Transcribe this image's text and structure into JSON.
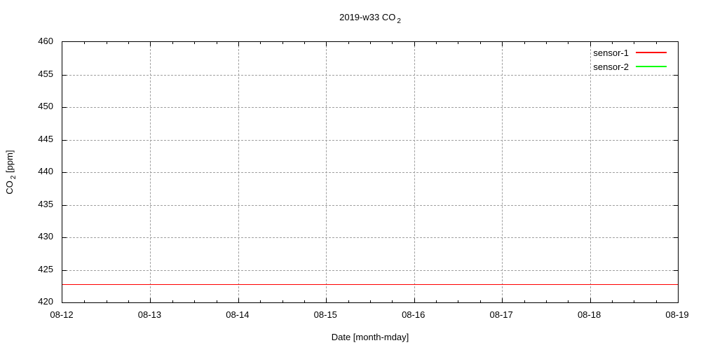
{
  "colors": {
    "background": "#ffffff",
    "axis": "#000000",
    "grid": "#a0a0a0",
    "text": "#000000"
  },
  "chart_data": {
    "type": "line",
    "title": {
      "main": "2019-w33 CO",
      "sub": "2"
    },
    "xlabel": "Date [month-mday]",
    "ylabel": {
      "main": "CO",
      "sub": "2",
      "post": " [ppm]"
    },
    "x_tick_labels": [
      "08-12",
      "08-13",
      "08-14",
      "08-15",
      "08-16",
      "08-17",
      "08-18",
      "08-19"
    ],
    "x_minor_divisions": 4,
    "ylim": [
      420,
      460
    ],
    "y_tick_step": 5,
    "grid": true,
    "legend": {
      "position": "top-right",
      "entries": [
        {
          "label": "sensor-1",
          "color": "#ff0000"
        },
        {
          "label": "sensor-2",
          "color": "#00ff00"
        }
      ]
    },
    "series": [
      {
        "name": "sensor-1",
        "color": "#ff0000",
        "x": [
          "08-12",
          "08-13",
          "08-14",
          "08-15",
          "08-16",
          "08-17",
          "08-18",
          "08-19"
        ],
        "values": [
          422.8,
          422.8,
          422.8,
          422.8,
          422.8,
          422.8,
          422.8,
          422.8
        ]
      },
      {
        "name": "sensor-2",
        "color": "#00ff00",
        "x": [],
        "values": []
      }
    ]
  }
}
